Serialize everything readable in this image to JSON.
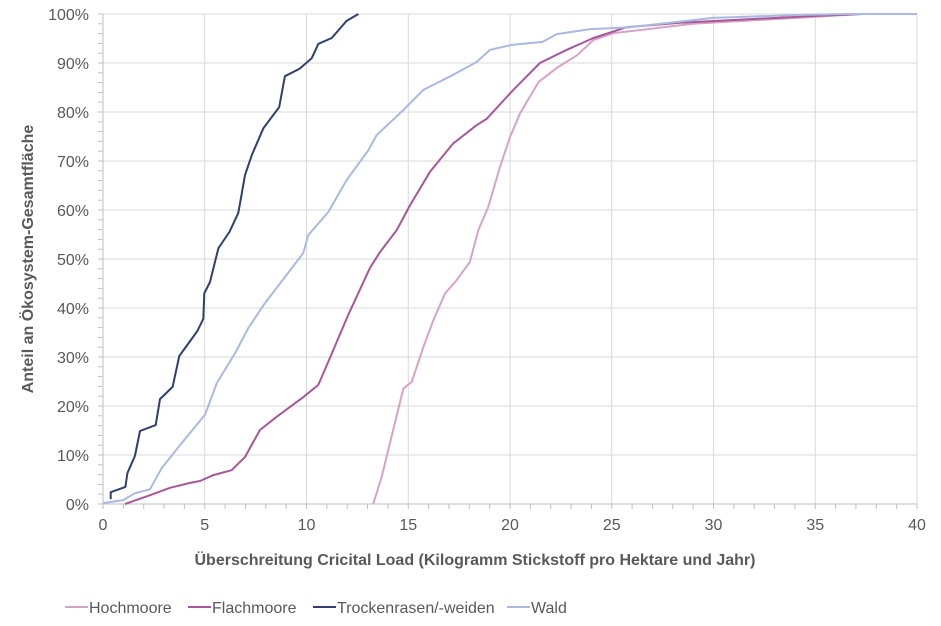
{
  "chart_data": {
    "type": "line",
    "title": "",
    "xlabel": "Überschreitung Cricital Load (Kilogramm Stickstoff pro Hektare und Jahr)",
    "ylabel": "Anteil an Ökosystem-Gesamtfläche",
    "xlim": [
      0,
      40
    ],
    "ylim": [
      0,
      100
    ],
    "x_ticks": [
      "0",
      "5",
      "10",
      "15",
      "20",
      "25",
      "30",
      "35",
      "40"
    ],
    "y_ticks": [
      "0%",
      "10%",
      "20%",
      "30%",
      "40%",
      "50%",
      "60%",
      "70%",
      "80%",
      "90%",
      "100%"
    ],
    "grid": true,
    "legend": "bottom",
    "series": [
      {
        "name": "Hochmoore",
        "color": "#d6a3c6",
        "points": [
          [
            13.28,
            0
          ],
          [
            13.69,
            5.5
          ],
          [
            14.1,
            12.4
          ],
          [
            14.76,
            23.6
          ],
          [
            15.17,
            24.9
          ],
          [
            15.74,
            32
          ],
          [
            16.23,
            37.5
          ],
          [
            16.81,
            43
          ],
          [
            17.38,
            45.7
          ],
          [
            18.03,
            49.4
          ],
          [
            18.44,
            55.9
          ],
          [
            18.93,
            60.6
          ],
          [
            19.51,
            68.8
          ],
          [
            20,
            74.9
          ],
          [
            20.5,
            79.8
          ],
          [
            21.4,
            86.1
          ],
          [
            22.3,
            89
          ],
          [
            23.3,
            91.6
          ],
          [
            24.1,
            94.7
          ],
          [
            25.1,
            96.1
          ],
          [
            29,
            98
          ],
          [
            34.9,
            99.4
          ],
          [
            37.3,
            100
          ],
          [
            40,
            100
          ]
        ]
      },
      {
        "name": "Flachmoore",
        "color": "#a8579a",
        "points": [
          [
            1.08,
            0
          ],
          [
            2.31,
            1.8
          ],
          [
            3.29,
            3.3
          ],
          [
            4.28,
            4.3
          ],
          [
            4.77,
            4.7
          ],
          [
            5.42,
            5.9
          ],
          [
            6.32,
            6.9
          ],
          [
            6.98,
            9.6
          ],
          [
            7.71,
            15.1
          ],
          [
            8.53,
            17.8
          ],
          [
            9.84,
            21.8
          ],
          [
            10.58,
            24.3
          ],
          [
            11.15,
            29.8
          ],
          [
            12.05,
            38.6
          ],
          [
            13.12,
            48.2
          ],
          [
            13.61,
            51.4
          ],
          [
            14.43,
            55.9
          ],
          [
            15.09,
            61
          ],
          [
            16.07,
            67.8
          ],
          [
            17.21,
            73.6
          ],
          [
            18.36,
            77.3
          ],
          [
            18.85,
            78.6
          ],
          [
            20.16,
            84.5
          ],
          [
            21.47,
            90
          ],
          [
            22.79,
            92.7
          ],
          [
            24.1,
            95.1
          ],
          [
            25.73,
            97.3
          ],
          [
            28.35,
            98.2
          ],
          [
            34.9,
            99.6
          ],
          [
            37.3,
            100
          ],
          [
            40,
            100
          ]
        ]
      },
      {
        "name": "Trockenrasen/-weiden",
        "color": "#2f3f6e",
        "points": [
          [
            0.38,
            1
          ],
          [
            0.38,
            2.4
          ],
          [
            1.1,
            3.5
          ],
          [
            1.2,
            6.3
          ],
          [
            1.57,
            9.8
          ],
          [
            1.82,
            14.9
          ],
          [
            2.59,
            16.1
          ],
          [
            2.8,
            21.4
          ],
          [
            3.42,
            23.9
          ],
          [
            3.75,
            30.2
          ],
          [
            4.64,
            35.3
          ],
          [
            4.93,
            37.8
          ],
          [
            4.98,
            43
          ],
          [
            5.26,
            45.3
          ],
          [
            5.67,
            52.2
          ],
          [
            6.21,
            55.5
          ],
          [
            6.65,
            59.4
          ],
          [
            6.98,
            67.1
          ],
          [
            7.31,
            71.2
          ],
          [
            7.88,
            76.7
          ],
          [
            8.66,
            81
          ],
          [
            8.94,
            87.3
          ],
          [
            9.65,
            88.8
          ],
          [
            10.26,
            91
          ],
          [
            10.58,
            93.9
          ],
          [
            11.24,
            95.1
          ],
          [
            11.97,
            98.6
          ],
          [
            12.55,
            100
          ]
        ]
      },
      {
        "name": "Wald",
        "color": "#a9b9e0",
        "points": [
          [
            0.02,
            0.2
          ],
          [
            1,
            0.8
          ],
          [
            1.57,
            2.2
          ],
          [
            2.31,
            3
          ],
          [
            2.88,
            7.3
          ],
          [
            3.78,
            12
          ],
          [
            5.01,
            18.2
          ],
          [
            5.59,
            24.7
          ],
          [
            6.49,
            30.8
          ],
          [
            7.14,
            35.9
          ],
          [
            7.96,
            41
          ],
          [
            8.94,
            46.3
          ],
          [
            9.84,
            51.2
          ],
          [
            10.09,
            54.9
          ],
          [
            11.07,
            59.6
          ],
          [
            11.97,
            66.1
          ],
          [
            13.04,
            72.2
          ],
          [
            13.45,
            75.3
          ],
          [
            14.76,
            80.4
          ],
          [
            15.74,
            84.5
          ],
          [
            17.21,
            87.6
          ],
          [
            18.36,
            90.2
          ],
          [
            19.02,
            92.7
          ],
          [
            20.08,
            93.7
          ],
          [
            21.6,
            94.3
          ],
          [
            22.3,
            95.9
          ],
          [
            23.9,
            96.9
          ],
          [
            25.9,
            97.3
          ],
          [
            29.97,
            99.2
          ],
          [
            34.1,
            99.8
          ],
          [
            36.5,
            100
          ],
          [
            40,
            100
          ]
        ]
      }
    ]
  }
}
